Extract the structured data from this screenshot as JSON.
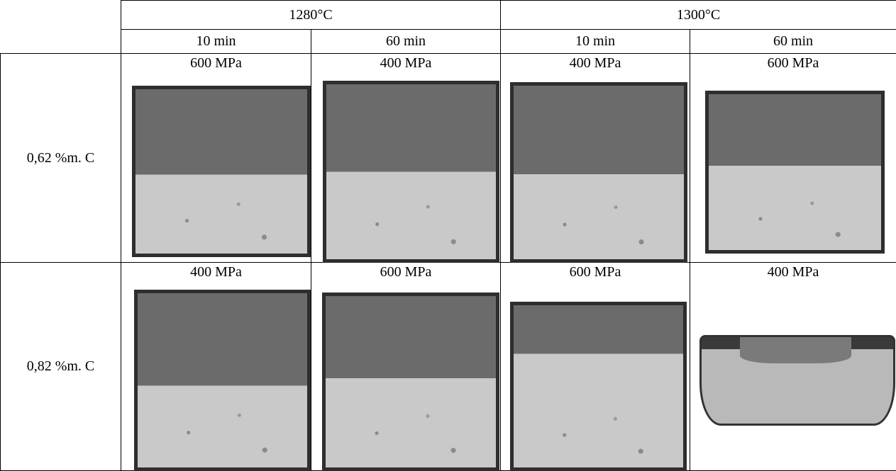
{
  "header": {
    "groups": [
      {
        "label": "1280°C"
      },
      {
        "label": "1300°C"
      }
    ],
    "times": [
      "10 min",
      "60 min",
      "10 min",
      "60 min"
    ]
  },
  "rows": [
    {
      "label": "0,62 %m. C",
      "cells": [
        "600 MPa",
        "400 MPa",
        "400 MPa",
        "600 MPa"
      ]
    },
    {
      "label": "0,82 %m. C",
      "cells": [
        "400 MPa",
        "600 MPa",
        "600 MPa",
        "400 MPa"
      ]
    }
  ]
}
